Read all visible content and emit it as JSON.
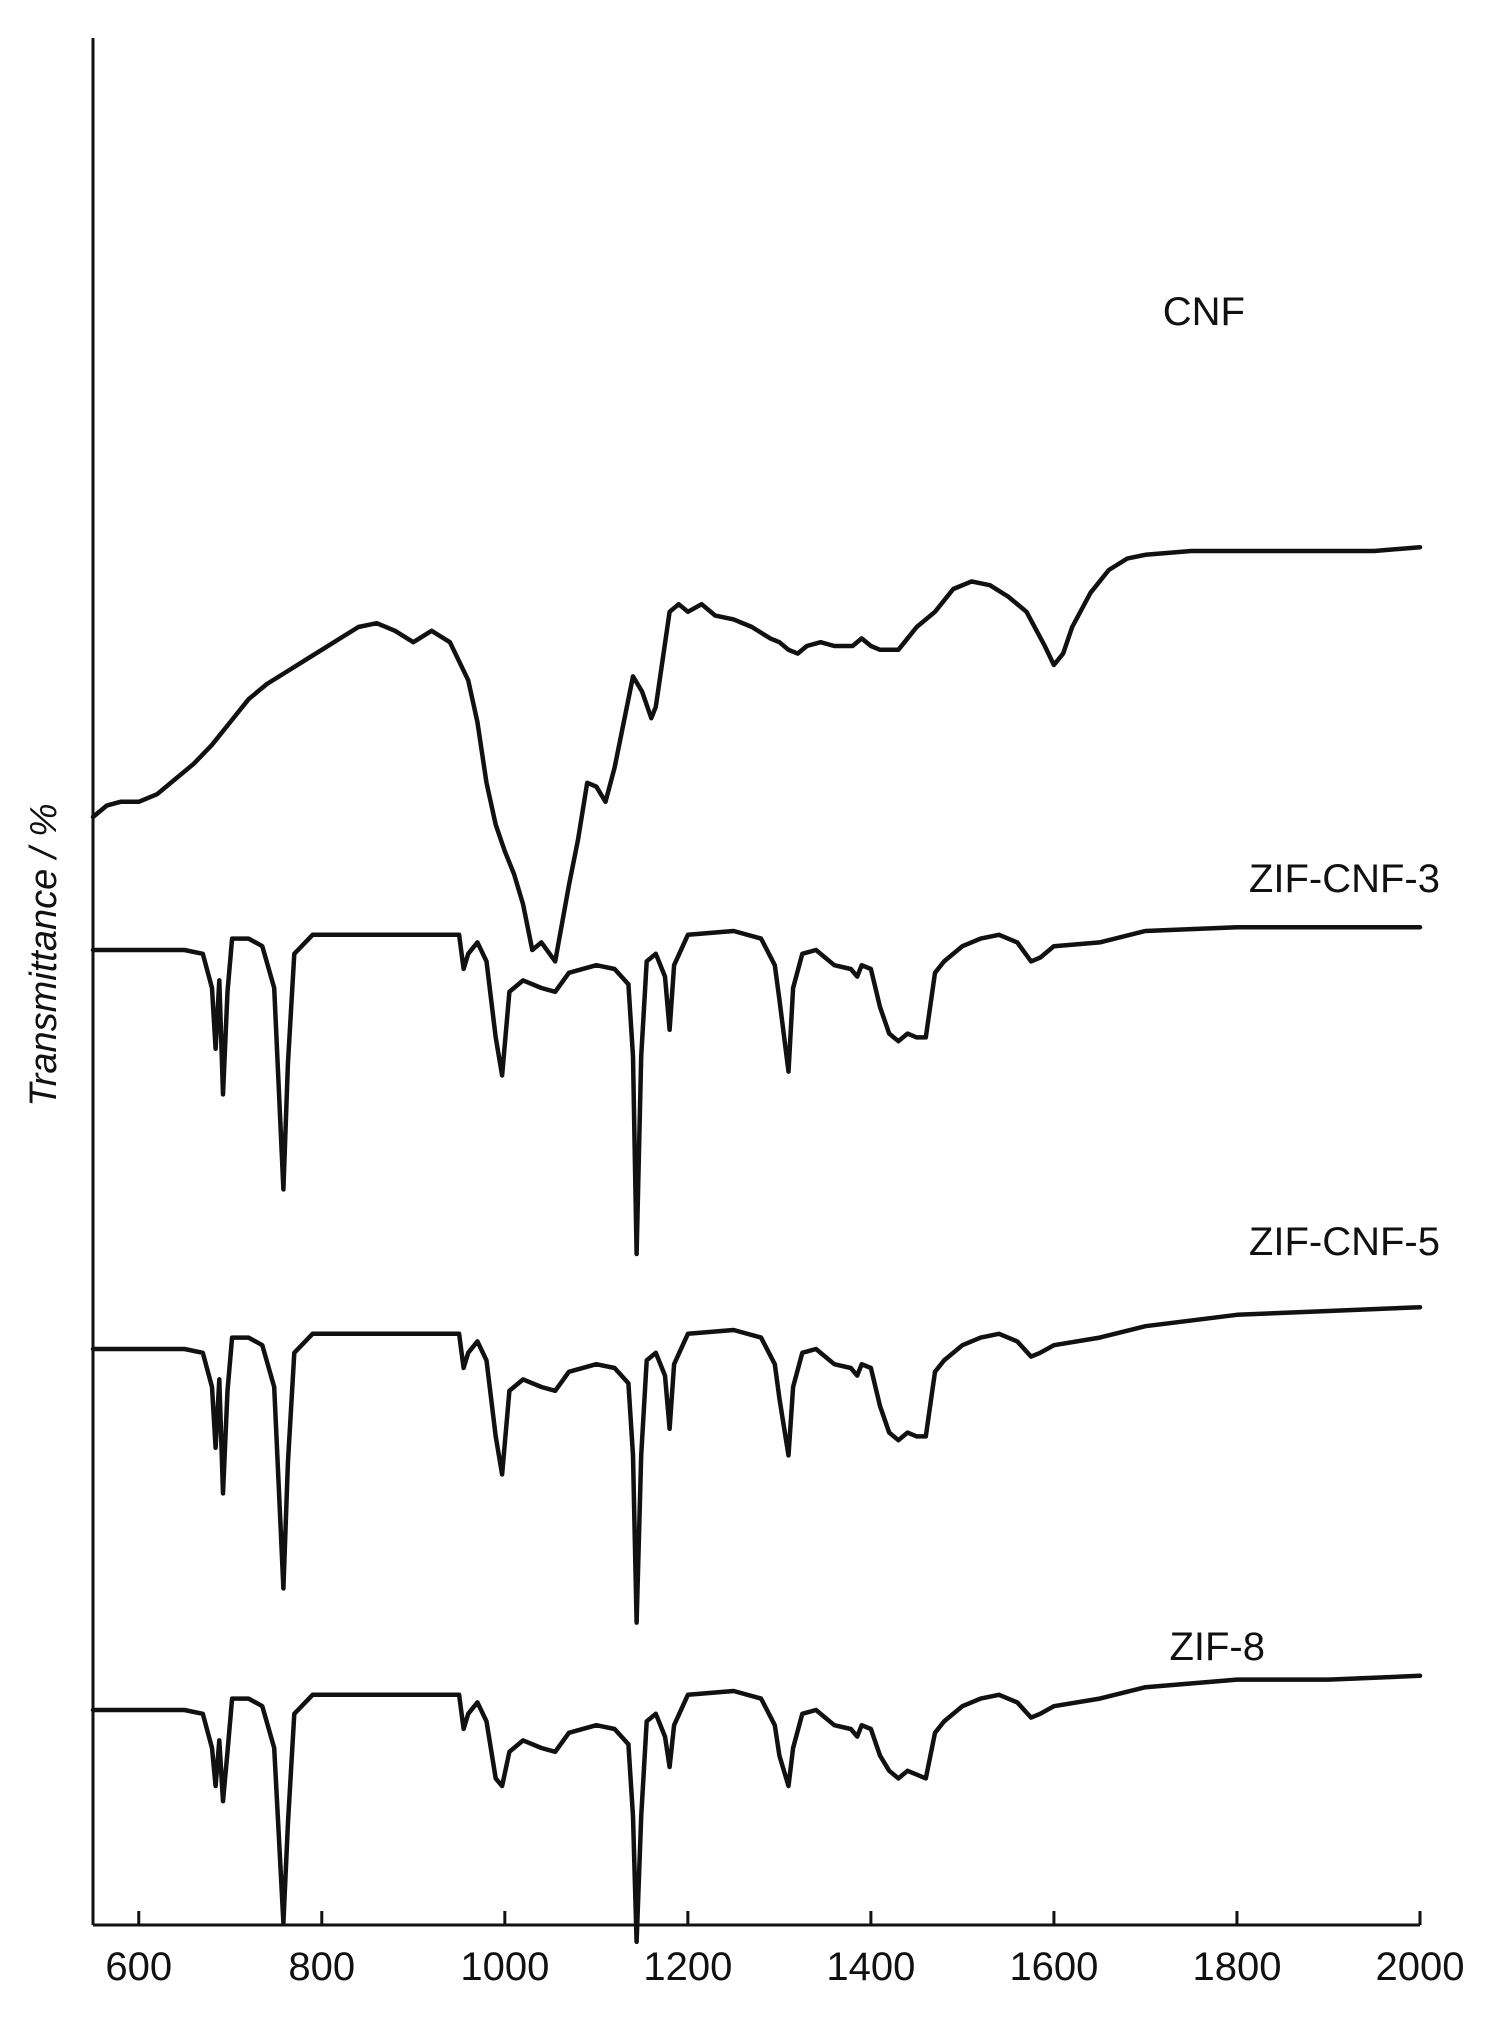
{
  "chart_data": {
    "type": "line",
    "title": "",
    "xlabel": "",
    "ylabel": "Transmittance / %",
    "xlim": [
      550,
      2000
    ],
    "x_ticks": [
      "600",
      "800",
      "1000",
      "1200",
      "1400",
      "1600",
      "1800",
      "2000"
    ],
    "y_ticks": [],
    "grid": false,
    "legend": "labels beside each curve on the right",
    "line_color": "#111111",
    "series": [
      {
        "name": "CNF",
        "baseline": 3.5,
        "points": [
          [
            550,
            0.0
          ],
          [
            565,
            0.3
          ],
          [
            580,
            0.4
          ],
          [
            600,
            0.4
          ],
          [
            620,
            0.6
          ],
          [
            640,
            1.0
          ],
          [
            660,
            1.4
          ],
          [
            680,
            1.9
          ],
          [
            700,
            2.5
          ],
          [
            720,
            3.1
          ],
          [
            740,
            3.5
          ],
          [
            760,
            3.8
          ],
          [
            780,
            4.1
          ],
          [
            800,
            4.4
          ],
          [
            820,
            4.7
          ],
          [
            840,
            5.0
          ],
          [
            860,
            5.1
          ],
          [
            880,
            4.9
          ],
          [
            900,
            4.6
          ],
          [
            920,
            4.9
          ],
          [
            940,
            4.6
          ],
          [
            960,
            3.6
          ],
          [
            970,
            2.5
          ],
          [
            980,
            0.9
          ],
          [
            990,
            -0.2
          ],
          [
            1000,
            -0.9
          ],
          [
            1010,
            -1.5
          ],
          [
            1020,
            -2.3
          ],
          [
            1030,
            -3.5
          ],
          [
            1040,
            -3.3
          ],
          [
            1055,
            -3.8
          ],
          [
            1070,
            -1.8
          ],
          [
            1080,
            -0.6
          ],
          [
            1090,
            0.9
          ],
          [
            1100,
            0.8
          ],
          [
            1110,
            0.4
          ],
          [
            1120,
            1.3
          ],
          [
            1130,
            2.5
          ],
          [
            1140,
            3.7
          ],
          [
            1150,
            3.3
          ],
          [
            1160,
            2.6
          ],
          [
            1165,
            2.9
          ],
          [
            1180,
            5.4
          ],
          [
            1190,
            5.6
          ],
          [
            1200,
            5.4
          ],
          [
            1215,
            5.6
          ],
          [
            1230,
            5.3
          ],
          [
            1250,
            5.2
          ],
          [
            1270,
            5.0
          ],
          [
            1290,
            4.7
          ],
          [
            1300,
            4.6
          ],
          [
            1310,
            4.4
          ],
          [
            1320,
            4.3
          ],
          [
            1330,
            4.5
          ],
          [
            1345,
            4.6
          ],
          [
            1360,
            4.5
          ],
          [
            1380,
            4.5
          ],
          [
            1390,
            4.7
          ],
          [
            1400,
            4.5
          ],
          [
            1410,
            4.4
          ],
          [
            1430,
            4.4
          ],
          [
            1450,
            5.0
          ],
          [
            1470,
            5.4
          ],
          [
            1490,
            6.0
          ],
          [
            1510,
            6.2
          ],
          [
            1530,
            6.1
          ],
          [
            1550,
            5.8
          ],
          [
            1570,
            5.4
          ],
          [
            1590,
            4.5
          ],
          [
            1600,
            4.0
          ],
          [
            1610,
            4.3
          ],
          [
            1620,
            5.0
          ],
          [
            1640,
            5.9
          ],
          [
            1660,
            6.5
          ],
          [
            1680,
            6.8
          ],
          [
            1700,
            6.9
          ],
          [
            1750,
            7.0
          ],
          [
            1800,
            7.0
          ],
          [
            1850,
            7.0
          ],
          [
            1900,
            7.0
          ],
          [
            1950,
            7.0
          ],
          [
            2000,
            7.1
          ]
        ]
      },
      {
        "name": "ZIF-CNF-3",
        "baseline": 0.0,
        "points": [
          [
            550,
            0.0
          ],
          [
            600,
            0.0
          ],
          [
            650,
            0.0
          ],
          [
            670,
            -0.1
          ],
          [
            680,
            -1.0
          ],
          [
            684,
            -2.6
          ],
          [
            688,
            -0.8
          ],
          [
            692,
            -3.8
          ],
          [
            697,
            -1.1
          ],
          [
            702,
            0.3
          ],
          [
            720,
            0.3
          ],
          [
            735,
            0.1
          ],
          [
            748,
            -1.0
          ],
          [
            758,
            -6.3
          ],
          [
            763,
            -3.0
          ],
          [
            770,
            -0.1
          ],
          [
            790,
            0.4
          ],
          [
            850,
            0.4
          ],
          [
            900,
            0.4
          ],
          [
            950,
            0.4
          ],
          [
            955,
            -0.5
          ],
          [
            960,
            -0.1
          ],
          [
            970,
            0.2
          ],
          [
            980,
            -0.3
          ],
          [
            990,
            -2.3
          ],
          [
            997,
            -3.3
          ],
          [
            1005,
            -1.1
          ],
          [
            1020,
            -0.8
          ],
          [
            1040,
            -1.0
          ],
          [
            1055,
            -1.1
          ],
          [
            1070,
            -0.6
          ],
          [
            1100,
            -0.4
          ],
          [
            1120,
            -0.5
          ],
          [
            1135,
            -0.9
          ],
          [
            1140,
            -2.8
          ],
          [
            1144,
            -8.0
          ],
          [
            1149,
            -2.8
          ],
          [
            1155,
            -0.3
          ],
          [
            1165,
            -0.1
          ],
          [
            1175,
            -0.7
          ],
          [
            1180,
            -2.1
          ],
          [
            1185,
            -0.4
          ],
          [
            1200,
            0.4
          ],
          [
            1250,
            0.5
          ],
          [
            1280,
            0.3
          ],
          [
            1295,
            -0.4
          ],
          [
            1300,
            -1.3
          ],
          [
            1310,
            -3.2
          ],
          [
            1315,
            -1.0
          ],
          [
            1325,
            -0.1
          ],
          [
            1340,
            0.0
          ],
          [
            1360,
            -0.4
          ],
          [
            1378,
            -0.5
          ],
          [
            1385,
            -0.7
          ],
          [
            1390,
            -0.4
          ],
          [
            1400,
            -0.5
          ],
          [
            1410,
            -1.5
          ],
          [
            1420,
            -2.2
          ],
          [
            1430,
            -2.4
          ],
          [
            1440,
            -2.2
          ],
          [
            1450,
            -2.3
          ],
          [
            1460,
            -2.3
          ],
          [
            1470,
            -0.6
          ],
          [
            1480,
            -0.3
          ],
          [
            1500,
            0.1
          ],
          [
            1520,
            0.3
          ],
          [
            1540,
            0.4
          ],
          [
            1560,
            0.2
          ],
          [
            1575,
            -0.3
          ],
          [
            1585,
            -0.2
          ],
          [
            1600,
            0.1
          ],
          [
            1650,
            0.2
          ],
          [
            1700,
            0.5
          ],
          [
            1800,
            0.6
          ],
          [
            1900,
            0.6
          ],
          [
            2000,
            0.6
          ]
        ]
      },
      {
        "name": "ZIF-CNF-5",
        "baseline": -10.5,
        "points": [
          [
            550,
            0.0
          ],
          [
            600,
            0.0
          ],
          [
            650,
            0.0
          ],
          [
            670,
            -0.1
          ],
          [
            680,
            -1.0
          ],
          [
            684,
            -2.6
          ],
          [
            688,
            -0.8
          ],
          [
            692,
            -3.8
          ],
          [
            697,
            -1.1
          ],
          [
            702,
            0.3
          ],
          [
            720,
            0.3
          ],
          [
            735,
            0.1
          ],
          [
            748,
            -1.0
          ],
          [
            758,
            -6.3
          ],
          [
            763,
            -3.0
          ],
          [
            770,
            -0.1
          ],
          [
            790,
            0.4
          ],
          [
            850,
            0.4
          ],
          [
            900,
            0.4
          ],
          [
            950,
            0.4
          ],
          [
            955,
            -0.5
          ],
          [
            960,
            -0.1
          ],
          [
            970,
            0.2
          ],
          [
            980,
            -0.3
          ],
          [
            990,
            -2.3
          ],
          [
            997,
            -3.3
          ],
          [
            1005,
            -1.1
          ],
          [
            1020,
            -0.8
          ],
          [
            1040,
            -1.0
          ],
          [
            1055,
            -1.1
          ],
          [
            1070,
            -0.6
          ],
          [
            1100,
            -0.4
          ],
          [
            1120,
            -0.5
          ],
          [
            1135,
            -0.9
          ],
          [
            1140,
            -2.8
          ],
          [
            1144,
            -7.2
          ],
          [
            1149,
            -2.8
          ],
          [
            1155,
            -0.3
          ],
          [
            1165,
            -0.1
          ],
          [
            1175,
            -0.7
          ],
          [
            1180,
            -2.1
          ],
          [
            1185,
            -0.4
          ],
          [
            1200,
            0.4
          ],
          [
            1250,
            0.5
          ],
          [
            1280,
            0.3
          ],
          [
            1295,
            -0.4
          ],
          [
            1300,
            -1.3
          ],
          [
            1310,
            -2.8
          ],
          [
            1315,
            -1.0
          ],
          [
            1325,
            -0.1
          ],
          [
            1340,
            0.0
          ],
          [
            1360,
            -0.4
          ],
          [
            1378,
            -0.5
          ],
          [
            1385,
            -0.7
          ],
          [
            1390,
            -0.4
          ],
          [
            1400,
            -0.5
          ],
          [
            1410,
            -1.5
          ],
          [
            1420,
            -2.2
          ],
          [
            1430,
            -2.4
          ],
          [
            1440,
            -2.2
          ],
          [
            1450,
            -2.3
          ],
          [
            1460,
            -2.3
          ],
          [
            1470,
            -0.6
          ],
          [
            1480,
            -0.3
          ],
          [
            1500,
            0.1
          ],
          [
            1520,
            0.3
          ],
          [
            1540,
            0.4
          ],
          [
            1560,
            0.2
          ],
          [
            1575,
            -0.2
          ],
          [
            1585,
            -0.1
          ],
          [
            1600,
            0.1
          ],
          [
            1650,
            0.3
          ],
          [
            1700,
            0.6
          ],
          [
            1800,
            0.9
          ],
          [
            1900,
            1.0
          ],
          [
            2000,
            1.1
          ]
        ]
      },
      {
        "name": "ZIF-8",
        "baseline": -20.0,
        "points": [
          [
            550,
            0.0
          ],
          [
            600,
            0.0
          ],
          [
            650,
            0.0
          ],
          [
            670,
            -0.1
          ],
          [
            680,
            -1.0
          ],
          [
            684,
            -2.0
          ],
          [
            688,
            -0.8
          ],
          [
            692,
            -2.4
          ],
          [
            697,
            -1.1
          ],
          [
            702,
            0.3
          ],
          [
            720,
            0.3
          ],
          [
            735,
            0.1
          ],
          [
            748,
            -1.0
          ],
          [
            758,
            -5.6
          ],
          [
            763,
            -3.0
          ],
          [
            770,
            -0.1
          ],
          [
            790,
            0.4
          ],
          [
            850,
            0.4
          ],
          [
            900,
            0.4
          ],
          [
            950,
            0.4
          ],
          [
            955,
            -0.5
          ],
          [
            960,
            -0.1
          ],
          [
            970,
            0.2
          ],
          [
            980,
            -0.3
          ],
          [
            990,
            -1.8
          ],
          [
            997,
            -2.0
          ],
          [
            1005,
            -1.1
          ],
          [
            1020,
            -0.8
          ],
          [
            1040,
            -1.0
          ],
          [
            1055,
            -1.1
          ],
          [
            1070,
            -0.6
          ],
          [
            1100,
            -0.4
          ],
          [
            1120,
            -0.5
          ],
          [
            1135,
            -0.9
          ],
          [
            1140,
            -2.8
          ],
          [
            1144,
            -6.1
          ],
          [
            1149,
            -2.8
          ],
          [
            1155,
            -0.3
          ],
          [
            1165,
            -0.1
          ],
          [
            1175,
            -0.7
          ],
          [
            1180,
            -1.5
          ],
          [
            1185,
            -0.4
          ],
          [
            1200,
            0.4
          ],
          [
            1250,
            0.5
          ],
          [
            1280,
            0.3
          ],
          [
            1295,
            -0.4
          ],
          [
            1300,
            -1.2
          ],
          [
            1310,
            -2.0
          ],
          [
            1315,
            -1.0
          ],
          [
            1325,
            -0.1
          ],
          [
            1340,
            0.0
          ],
          [
            1360,
            -0.4
          ],
          [
            1378,
            -0.5
          ],
          [
            1385,
            -0.7
          ],
          [
            1390,
            -0.4
          ],
          [
            1400,
            -0.5
          ],
          [
            1410,
            -1.2
          ],
          [
            1420,
            -1.6
          ],
          [
            1430,
            -1.8
          ],
          [
            1440,
            -1.6
          ],
          [
            1450,
            -1.7
          ],
          [
            1460,
            -1.8
          ],
          [
            1470,
            -0.6
          ],
          [
            1480,
            -0.3
          ],
          [
            1500,
            0.1
          ],
          [
            1520,
            0.3
          ],
          [
            1540,
            0.4
          ],
          [
            1560,
            0.2
          ],
          [
            1575,
            -0.2
          ],
          [
            1585,
            -0.1
          ],
          [
            1600,
            0.1
          ],
          [
            1650,
            0.3
          ],
          [
            1700,
            0.6
          ],
          [
            1800,
            0.8
          ],
          [
            1900,
            0.8
          ],
          [
            2000,
            0.9
          ]
        ]
      }
    ]
  }
}
